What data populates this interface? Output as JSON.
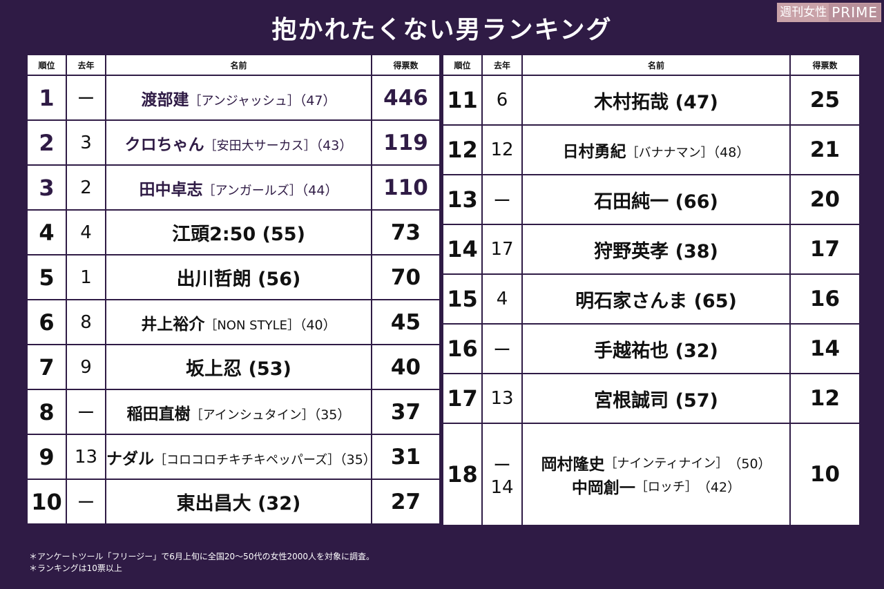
{
  "title": "抱かれたくない男ランキング",
  "logo": {
    "jp": "週刊女性",
    "en": "PRIME"
  },
  "headers": {
    "rank": "順位",
    "prev": "去年",
    "name": "名前",
    "votes": "得票数"
  },
  "left_rows": [
    {
      "rank": "1",
      "prev": "ー",
      "name": "渡部建",
      "group": "［アンジャッシュ］",
      "age": "（47）",
      "votes": "446",
      "small": true
    },
    {
      "rank": "2",
      "prev": "3",
      "name": "クロちゃん",
      "group": "［安田大サーカス］",
      "age": "（43）",
      "votes": "119",
      "small": true
    },
    {
      "rank": "3",
      "prev": "2",
      "name": "田中卓志",
      "group": "［アンガールズ］",
      "age": "（44）",
      "votes": "110",
      "small": true
    },
    {
      "rank": "4",
      "prev": "4",
      "name": "江頭2:50",
      "group": "",
      "age": " (55)",
      "votes": "73",
      "small": false
    },
    {
      "rank": "5",
      "prev": "1",
      "name": "出川哲朗",
      "group": "",
      "age": " (56)",
      "votes": "70",
      "small": false
    },
    {
      "rank": "6",
      "prev": "8",
      "name": "井上裕介",
      "group": "［NON STYLE］",
      "age": "（40）",
      "votes": "45",
      "small": true
    },
    {
      "rank": "7",
      "prev": "9",
      "name": "坂上忍",
      "group": "",
      "age": " (53)",
      "votes": "40",
      "small": false
    },
    {
      "rank": "8",
      "prev": "ー",
      "name": "稲田直樹",
      "group": "［アインシュタイン］",
      "age": "（35）",
      "votes": "37",
      "small": true
    },
    {
      "rank": "9",
      "prev": "13",
      "name": "ナダル",
      "group": "［コロコロチキチキペッパーズ］",
      "age": "（35）",
      "votes": "31",
      "small": true
    },
    {
      "rank": "10",
      "prev": "ー",
      "name": "東出昌大",
      "group": "",
      "age": " (32)",
      "votes": "27",
      "small": false
    }
  ],
  "right_rows": [
    {
      "rank": "11",
      "prev": "6",
      "name": "木村拓哉",
      "group": "",
      "age": " (47)",
      "votes": "25",
      "small": false
    },
    {
      "rank": "12",
      "prev": "12",
      "name": "日村勇紀",
      "group": "［バナナマン］",
      "age": "（48）",
      "votes": "21",
      "small": true
    },
    {
      "rank": "13",
      "prev": "ー",
      "name": "石田純一",
      "group": "",
      "age": " (66)",
      "votes": "20",
      "small": false
    },
    {
      "rank": "14",
      "prev": "17",
      "name": "狩野英孝",
      "group": "",
      "age": " (38)",
      "votes": "17",
      "small": false
    },
    {
      "rank": "15",
      "prev": "4",
      "name": "明石家さんま",
      "group": "",
      "age": " (65)",
      "votes": "16",
      "small": false
    },
    {
      "rank": "16",
      "prev": "ー",
      "name": "手越祐也",
      "group": "",
      "age": " (32)",
      "votes": "14",
      "small": false
    },
    {
      "rank": "17",
      "prev": "13",
      "name": "宮根誠司",
      "group": "",
      "age": " (57)",
      "votes": "12",
      "small": false
    }
  ],
  "tie_row": {
    "rank": "18",
    "votes": "10",
    "a": {
      "prev": "ー",
      "name": "岡村隆史",
      "group": "［ナインティナイン］",
      "age": "（50）"
    },
    "b": {
      "prev": "14",
      "name": "中岡創一",
      "group": "［ロッチ］",
      "age": "（42）"
    }
  },
  "notes": [
    "＊アンケートツール「フリージー」で6月上旬に全国20〜50代の女性2000人を対象に調査。",
    "＊ランキングは10票以上"
  ]
}
